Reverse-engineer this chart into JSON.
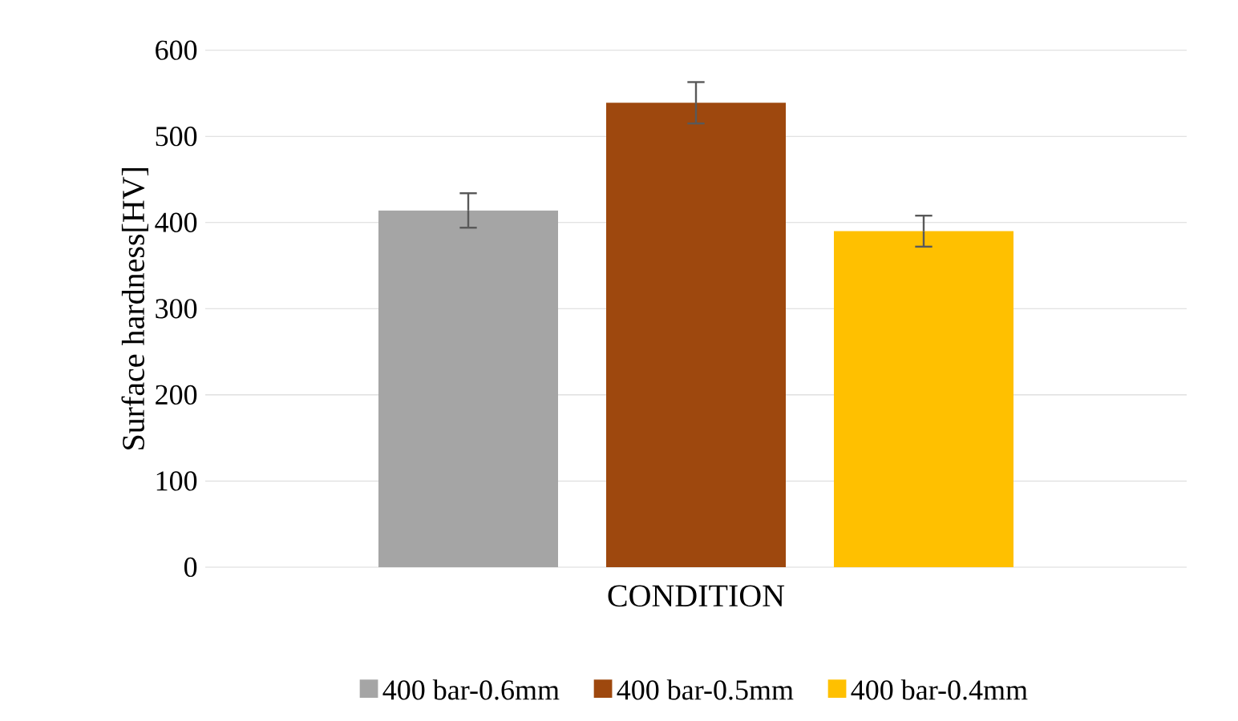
{
  "chart_data": {
    "type": "bar",
    "xlabel": "CONDITION",
    "ylabel": "Surface hardness[HV]",
    "categories": [
      null
    ],
    "series": [
      {
        "name": "400 bar-0.6mm",
        "color": "#a5a5a5",
        "values": [
          414
        ],
        "errors": [
          20
        ]
      },
      {
        "name": "400 bar-0.5mm",
        "color": "#9e480e",
        "values": [
          539
        ],
        "errors": [
          24
        ]
      },
      {
        "name": "400 bar-0.4mm",
        "color": "#ffc000",
        "values": [
          390
        ],
        "errors": [
          18
        ]
      }
    ],
    "ylim": [
      0,
      600
    ],
    "yticks": [
      0,
      100,
      200,
      300,
      400,
      500,
      600
    ],
    "grid": "y",
    "legend": "bottom"
  }
}
